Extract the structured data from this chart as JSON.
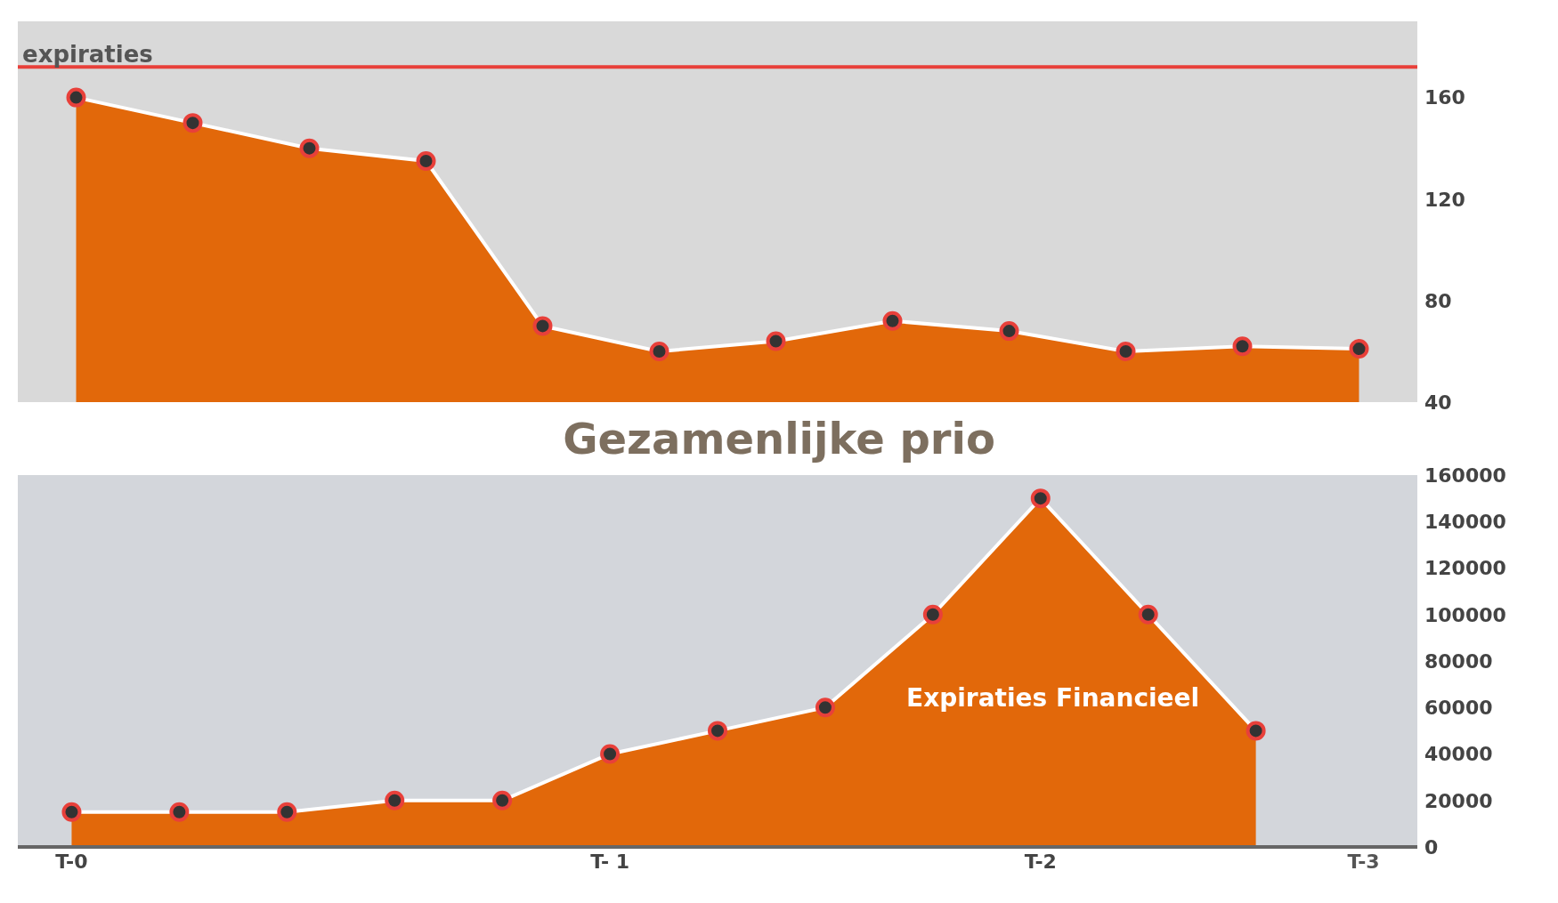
{
  "chart_data": [
    {
      "type": "area",
      "categories": [
        null,
        null,
        null,
        null,
        null,
        null,
        null,
        null,
        null,
        null,
        null,
        null
      ],
      "series": [
        {
          "color": "#e2680a",
          "values": [
            160,
            150,
            140,
            135,
            70,
            60,
            64,
            72,
            68,
            60,
            62,
            61
          ]
        }
      ],
      "ylim": [
        40,
        190
      ],
      "yticks": [
        40,
        80,
        120,
        160
      ],
      "tick_labels": "y",
      "grid": false,
      "legend": false,
      "marker": "circle",
      "ref_lines": [
        {
          "axis": "y",
          "value": 172,
          "label": "expiraties",
          "color": "#e8403a"
        }
      ],
      "annotations": [
        "Gezamenlijke prio"
      ]
    },
    {
      "type": "area",
      "categories": [
        "T-0",
        null,
        null,
        null,
        null,
        "T- 1",
        null,
        null,
        null,
        "T-2",
        null,
        null,
        "T-3"
      ],
      "series": [
        {
          "color": "#e2680a",
          "values": [
            15000,
            15000,
            15000,
            20000,
            20000,
            40000,
            50000,
            60000,
            100000,
            150000,
            100000,
            50000,
            null
          ]
        }
      ],
      "ylim": [
        0,
        160000
      ],
      "yticks": [
        0,
        20000,
        40000,
        60000,
        80000,
        100000,
        120000,
        140000,
        160000
      ],
      "grid": false,
      "legend": false,
      "marker": "circle",
      "annotations": [
        "Expiraties Financieel"
      ]
    }
  ]
}
